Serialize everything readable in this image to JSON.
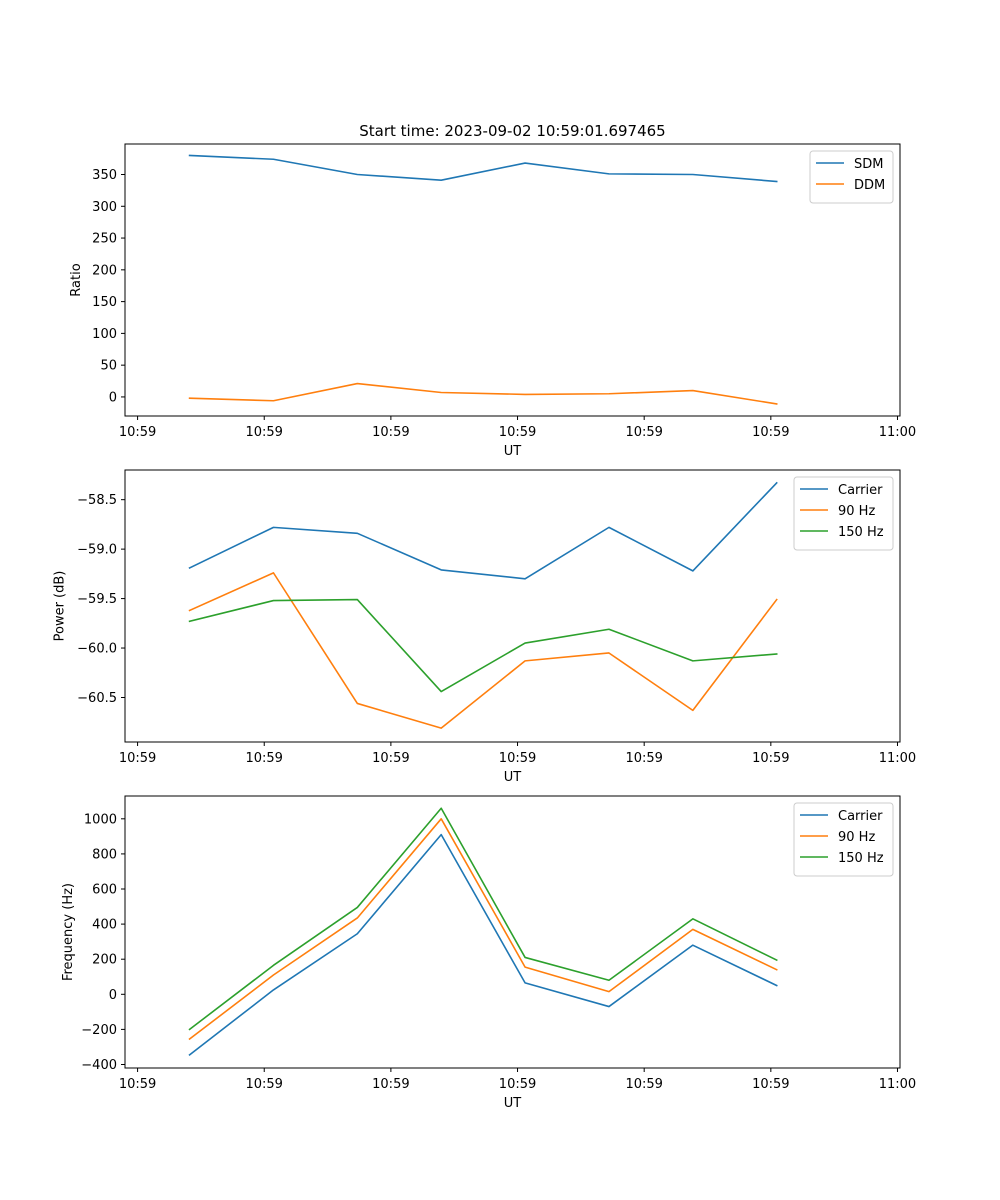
{
  "figure": {
    "title": "Start time: 2023-09-02 10:59:01.697465"
  },
  "colors": {
    "blue": "#1f77b4",
    "orange": "#ff7f0e",
    "green": "#2ca02c"
  },
  "chart_data": [
    {
      "type": "line",
      "title": "Start time: 2023-09-02 10:59:01.697465",
      "xlabel": "UT",
      "ylabel": "Ratio",
      "xlim": [
        -0.62,
        8.62
      ],
      "ylim": [
        -30,
        398
      ],
      "x": [
        0.15,
        1.15,
        2.15,
        3.15,
        4.15,
        5.15,
        6.15,
        7.15
      ],
      "xticks": [
        -0.47,
        1.04,
        2.55,
        4.06,
        5.57,
        7.08,
        8.59
      ],
      "xticklabels": [
        "10:59",
        "10:59",
        "10:59",
        "10:59",
        "10:59",
        "10:59",
        "11:00"
      ],
      "yticks": [
        0,
        50,
        100,
        150,
        200,
        250,
        300,
        350
      ],
      "yticklabels": [
        "0",
        "50",
        "100",
        "150",
        "200",
        "250",
        "300",
        "350"
      ],
      "legend_position": "top-right",
      "series": [
        {
          "name": "SDM",
          "color": "#1f77b4",
          "values": [
            380,
            374,
            350,
            341,
            368,
            351,
            350,
            339
          ]
        },
        {
          "name": "DDM",
          "color": "#ff7f0e",
          "values": [
            -2,
            -6,
            21,
            7,
            4,
            5,
            10,
            -11
          ]
        }
      ]
    },
    {
      "type": "line",
      "title": "",
      "xlabel": "UT",
      "ylabel": "Power (dB)",
      "xlim": [
        -0.62,
        8.62
      ],
      "ylim": [
        -60.95,
        -58.2
      ],
      "x": [
        0.15,
        1.15,
        2.15,
        3.15,
        4.15,
        5.15,
        6.15,
        7.15
      ],
      "xticks": [
        -0.47,
        1.04,
        2.55,
        4.06,
        5.57,
        7.08,
        8.59
      ],
      "xticklabels": [
        "10:59",
        "10:59",
        "10:59",
        "10:59",
        "10:59",
        "10:59",
        "11:00"
      ],
      "yticks": [
        -60.5,
        -60.0,
        -59.5,
        -59.0,
        -58.5
      ],
      "yticklabels": [
        "−60.5",
        "−60.0",
        "−59.5",
        "−59.0",
        "−58.5"
      ],
      "legend_position": "top-right",
      "series": [
        {
          "name": "Carrier",
          "color": "#1f77b4",
          "values": [
            -59.19,
            -58.78,
            -58.84,
            -59.21,
            -59.3,
            -58.78,
            -59.22,
            -58.33
          ]
        },
        {
          "name": "90 Hz",
          "color": "#ff7f0e",
          "values": [
            -59.62,
            -59.24,
            -60.56,
            -60.81,
            -60.13,
            -60.05,
            -60.63,
            -59.51
          ]
        },
        {
          "name": "150 Hz",
          "color": "#2ca02c",
          "values": [
            -59.73,
            -59.52,
            -59.51,
            -60.44,
            -59.95,
            -59.81,
            -60.13,
            -60.06
          ]
        }
      ]
    },
    {
      "type": "line",
      "title": "",
      "xlabel": "UT",
      "ylabel": "Frequency (Hz)",
      "xlim": [
        -0.62,
        8.62
      ],
      "ylim": [
        -420,
        1130
      ],
      "x": [
        0.15,
        1.15,
        2.15,
        3.15,
        4.15,
        5.15,
        6.15,
        7.15
      ],
      "xticks": [
        -0.47,
        1.04,
        2.55,
        4.06,
        5.57,
        7.08,
        8.59
      ],
      "xticklabels": [
        "10:59",
        "10:59",
        "10:59",
        "10:59",
        "10:59",
        "10:59",
        "11:00"
      ],
      "yticks": [
        -400,
        -200,
        0,
        200,
        400,
        600,
        800,
        1000
      ],
      "yticklabels": [
        "−400",
        "−200",
        "0",
        "200",
        "400",
        "600",
        "800",
        "1000"
      ],
      "legend_position": "top-right",
      "series": [
        {
          "name": "Carrier",
          "color": "#1f77b4",
          "values": [
            -345,
            25,
            345,
            910,
            65,
            -70,
            280,
            50
          ]
        },
        {
          "name": "90 Hz",
          "color": "#ff7f0e",
          "values": [
            -255,
            110,
            435,
            1000,
            155,
            15,
            370,
            140
          ]
        },
        {
          "name": "150 Hz",
          "color": "#2ca02c",
          "values": [
            -200,
            165,
            495,
            1060,
            210,
            80,
            430,
            195
          ]
        }
      ]
    }
  ]
}
